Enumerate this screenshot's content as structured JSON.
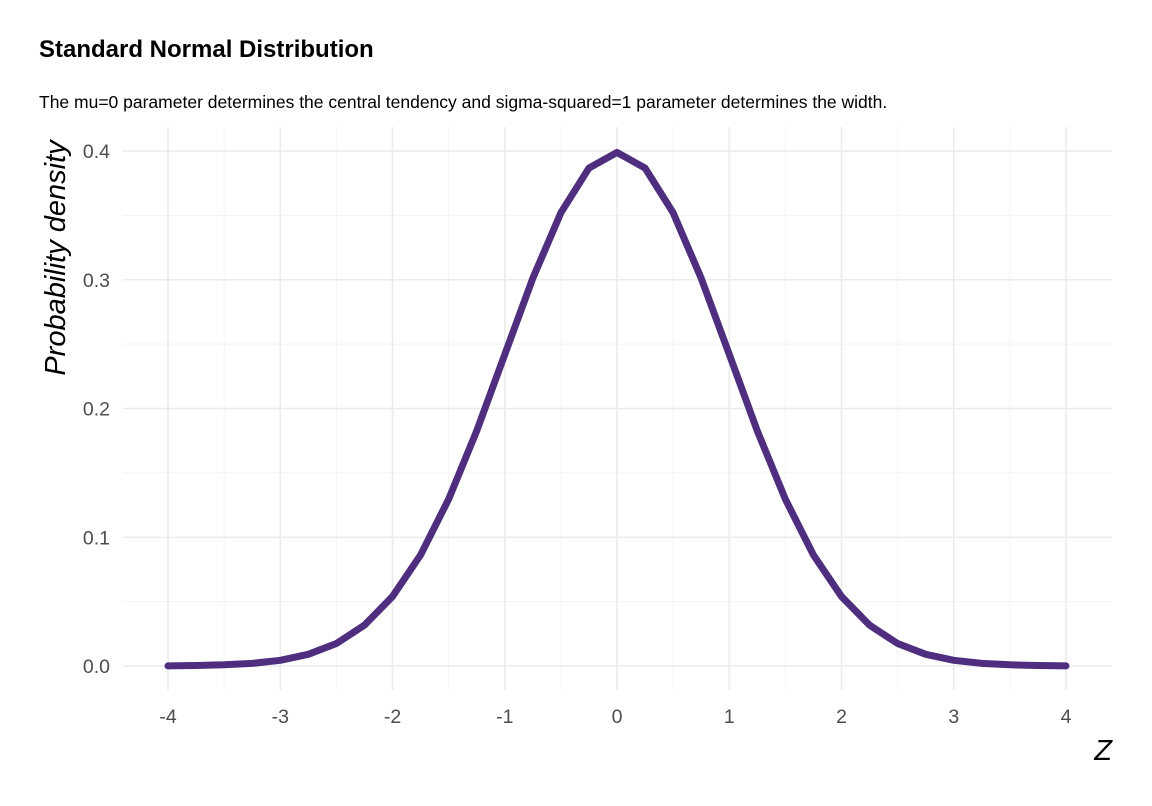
{
  "chart_data": {
    "type": "line",
    "title": "Standard Normal Distribution",
    "subtitle": "The mu=0 parameter determines the central tendency and sigma-squared=1 parameter determines the width.",
    "xlabel": "Z",
    "ylabel": "Probability density",
    "xlim": [
      -4,
      4
    ],
    "ylim": [
      0,
      0.4
    ],
    "x_ticks": [
      "-4",
      "-3",
      "-2",
      "-1",
      "0",
      "1",
      "2",
      "3",
      "4"
    ],
    "y_ticks": [
      "0.0",
      "0.1",
      "0.2",
      "0.3",
      "0.4"
    ],
    "grid": true,
    "line_color": "#4f2d7f",
    "series": [
      {
        "x": [
          -4,
          -3.75,
          -3.5,
          -3.25,
          -3,
          -2.75,
          -2.5,
          -2.25,
          -2,
          -1.75,
          -1.5,
          -1.25,
          -1,
          -0.75,
          -0.5,
          -0.25,
          0,
          0.25,
          0.5,
          0.75,
          1,
          1.25,
          1.5,
          1.75,
          2,
          2.25,
          2.5,
          2.75,
          3,
          3.25,
          3.5,
          3.75,
          4
        ],
        "values": [
          0.0001,
          0.0004,
          0.0009,
          0.002,
          0.0044,
          0.0091,
          0.0175,
          0.0317,
          0.054,
          0.0863,
          0.1295,
          0.1826,
          0.242,
          0.3011,
          0.3521,
          0.3867,
          0.3989,
          0.3867,
          0.3521,
          0.3011,
          0.242,
          0.1826,
          0.1295,
          0.0863,
          0.054,
          0.0317,
          0.0175,
          0.0091,
          0.0044,
          0.002,
          0.0009,
          0.0004,
          0.0001
        ]
      }
    ]
  }
}
